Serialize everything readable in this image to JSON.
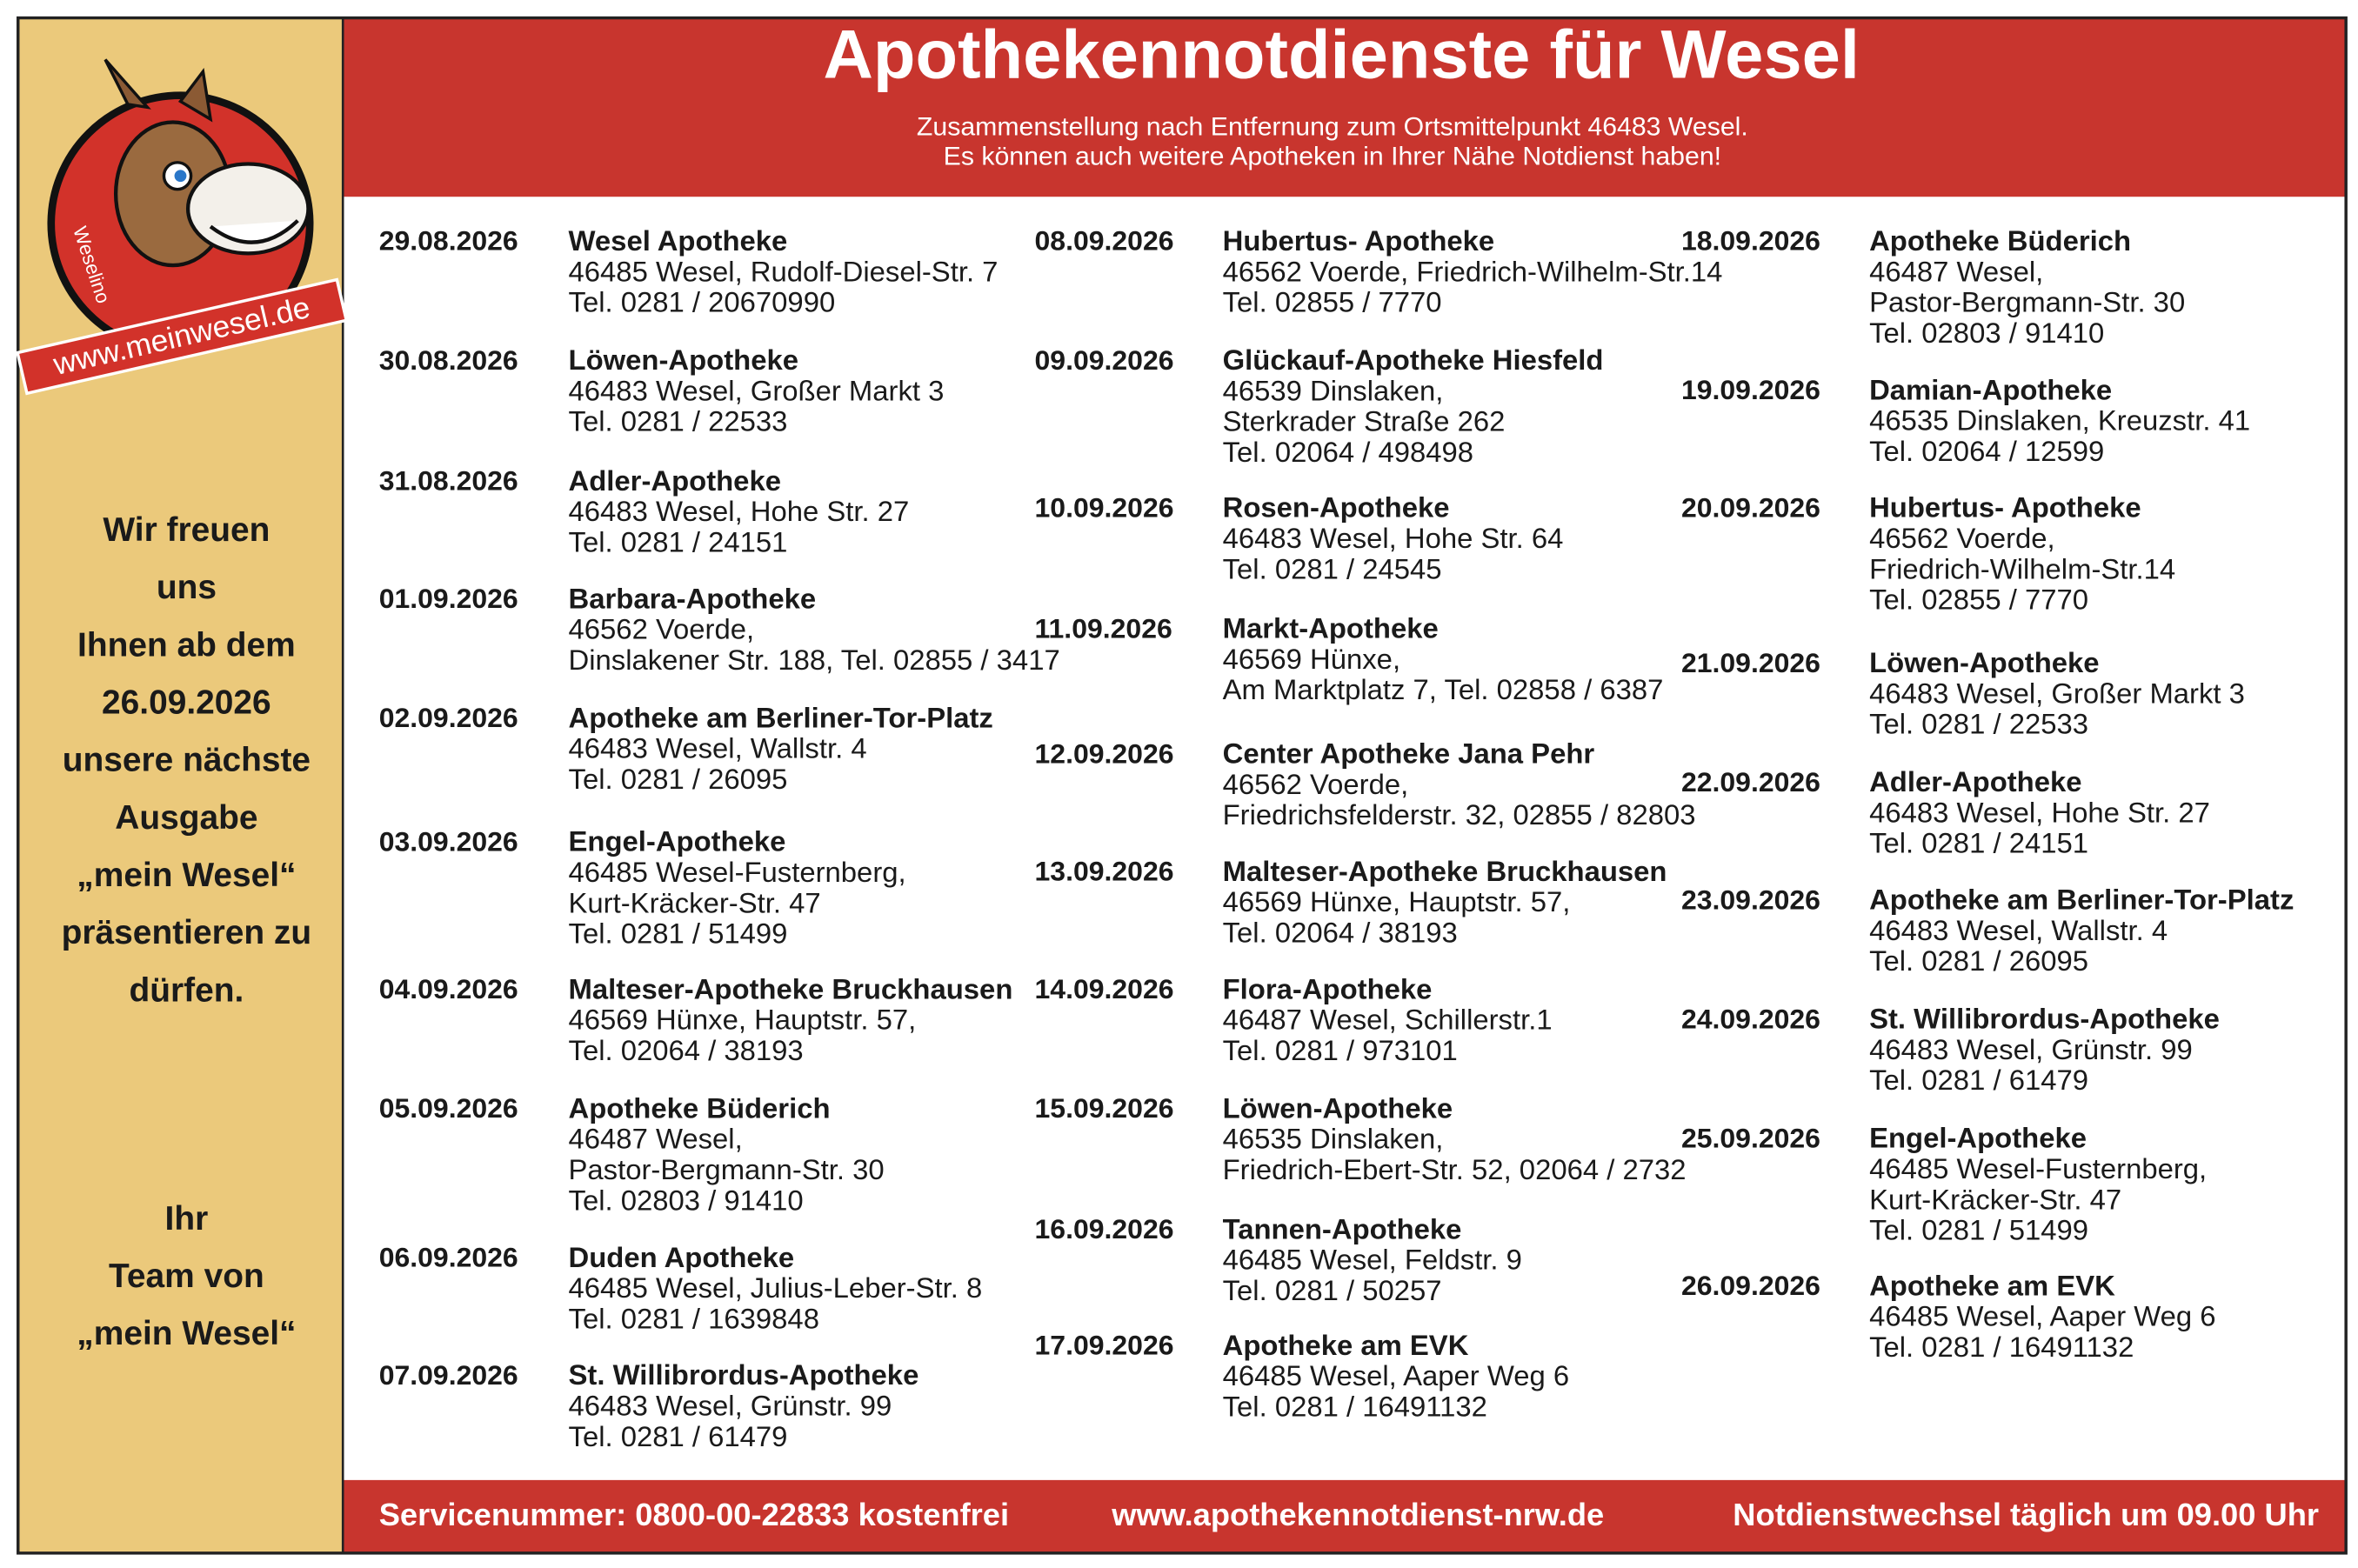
{
  "header": {
    "title": "Apothekennotdienste für Wesel",
    "subtitle": [
      "Zusammenstellung nach Entfernung zum Ortsmittelpunkt 46483 Wesel.",
      "Es können auch weitere Apotheken in Ihrer Nähe Notdienst haben!"
    ]
  },
  "sidebar": {
    "logo_name": "Weselino",
    "logo_url": "www.meinwesel.de",
    "message": [
      "Wir freuen",
      "uns",
      "Ihnen ab dem",
      "26.09.2026",
      "unsere nächste",
      "Ausgabe",
      "„mein Wesel“",
      "präsentieren zu",
      "dürfen."
    ],
    "signature": [
      "Ihr",
      "Team von",
      "„mein Wesel“"
    ]
  },
  "columns": [
    [
      {
        "date": "29.08.2026",
        "name": "Wesel Apotheke",
        "lines": [
          "46485 Wesel, Rudolf-Diesel-Str. 7",
          "Tel. 0281 / 20670990"
        ]
      },
      {
        "date": "30.08.2026",
        "name": "Löwen-Apotheke",
        "lines": [
          "46483 Wesel, Großer Markt 3",
          "Tel. 0281 / 22533"
        ]
      },
      {
        "date": "31.08.2026",
        "name": "Adler-Apotheke",
        "lines": [
          "46483 Wesel, Hohe Str. 27",
          "Tel. 0281 / 24151"
        ]
      },
      {
        "date": "01.09.2026",
        "name": "Barbara-Apotheke",
        "lines": [
          "46562 Voerde,",
          "Dinslakener Str. 188, Tel. 02855 / 3417"
        ]
      },
      {
        "date": "02.09.2026",
        "name": "Apotheke am Berliner-Tor-Platz",
        "lines": [
          "46483 Wesel, Wallstr. 4",
          "Tel. 0281 / 26095"
        ]
      },
      {
        "date": "03.09.2026",
        "name": "Engel-Apotheke",
        "lines": [
          "46485 Wesel-Fusternberg,",
          "Kurt-Kräcker-Str. 47",
          "Tel. 0281 / 51499"
        ]
      },
      {
        "date": "04.09.2026",
        "name": "Malteser-Apotheke Bruckhausen",
        "lines": [
          "46569 Hünxe, Hauptstr. 57,",
          "Tel. 02064 / 38193"
        ]
      },
      {
        "date": "05.09.2026",
        "name": "Apotheke Büderich",
        "lines": [
          "46487 Wesel,",
          "Pastor-Bergmann-Str. 30",
          "Tel. 02803 / 91410"
        ]
      },
      {
        "date": "06.09.2026",
        "name": "Duden Apotheke",
        "lines": [
          "46485 Wesel, Julius-Leber-Str. 8",
          "Tel. 0281 / 1639848"
        ]
      },
      {
        "date": "07.09.2026",
        "name": "St. Willibrordus-Apotheke",
        "lines": [
          "46483 Wesel, Grünstr. 99",
          "Tel. 0281 / 61479"
        ]
      }
    ],
    [
      {
        "date": "08.09.2026",
        "name": "Hubertus- Apotheke",
        "lines": [
          "46562 Voerde, Friedrich-Wilhelm-Str.14",
          "Tel. 02855 / 7770"
        ]
      },
      {
        "date": "09.09.2026",
        "name": "Glückauf-Apotheke Hiesfeld",
        "lines": [
          "46539 Dinslaken,",
          "Sterkrader Straße 262",
          "Tel. 02064 / 498498"
        ]
      },
      {
        "date": "10.09.2026",
        "name": "Rosen-Apotheke",
        "lines": [
          "46483 Wesel, Hohe Str. 64",
          "Tel. 0281 / 24545"
        ]
      },
      {
        "date": "11.09.2026",
        "name": "Markt-Apotheke",
        "lines": [
          "46569 Hünxe,",
          "Am Marktplatz 7, Tel. 02858 / 6387"
        ]
      },
      {
        "date": "12.09.2026",
        "name": "Center Apotheke Jana Pehr",
        "lines": [
          "46562 Voerde,",
          "Friedrichsfelderstr. 32, 02855 / 82803"
        ]
      },
      {
        "date": "13.09.2026",
        "name": "Malteser-Apotheke Bruckhausen",
        "lines": [
          "46569 Hünxe, Hauptstr. 57,",
          "Tel. 02064 / 38193"
        ]
      },
      {
        "date": "14.09.2026",
        "name": "Flora-Apotheke",
        "lines": [
          "46487 Wesel, Schillerstr.1",
          "Tel. 0281 / 973101"
        ]
      },
      {
        "date": "15.09.2026",
        "name": "Löwen-Apotheke",
        "lines": [
          "46535 Dinslaken,",
          "Friedrich-Ebert-Str. 52, 02064 / 2732"
        ]
      },
      {
        "date": "16.09.2026",
        "name": "Tannen-Apotheke",
        "lines": [
          "46485 Wesel, Feldstr. 9",
          "Tel. 0281 / 50257"
        ]
      },
      {
        "date": "17.09.2026",
        "name": "Apotheke am EVK",
        "lines": [
          "46485 Wesel, Aaper Weg 6",
          "Tel. 0281 / 16491132"
        ]
      }
    ],
    [
      {
        "date": "18.09.2026",
        "name": "Apotheke Büderich",
        "lines": [
          "46487 Wesel,",
          "Pastor-Bergmann-Str. 30",
          "Tel. 02803 / 91410"
        ]
      },
      {
        "date": "19.09.2026",
        "name": "Damian-Apotheke",
        "lines": [
          "46535 Dinslaken, Kreuzstr. 41",
          "Tel. 02064 / 12599"
        ]
      },
      {
        "date": "20.09.2026",
        "name": "Hubertus- Apotheke",
        "lines": [
          "46562 Voerde,",
          "Friedrich-Wilhelm-Str.14",
          "Tel. 02855 / 7770"
        ]
      },
      {
        "date": "21.09.2026",
        "name": "Löwen-Apotheke",
        "lines": [
          "46483 Wesel, Großer Markt 3",
          "Tel. 0281 / 22533"
        ]
      },
      {
        "date": "22.09.2026",
        "name": "Adler-Apotheke",
        "lines": [
          "46483 Wesel, Hohe Str. 27",
          "Tel. 0281 / 24151"
        ]
      },
      {
        "date": "23.09.2026",
        "name": "Apotheke am Berliner-Tor-Platz",
        "lines": [
          "46483 Wesel, Wallstr. 4",
          "Tel. 0281 / 26095"
        ]
      },
      {
        "date": "24.09.2026",
        "name": "St. Willibrordus-Apotheke",
        "lines": [
          "46483 Wesel, Grünstr. 99",
          "Tel. 0281 / 61479"
        ]
      },
      {
        "date": "25.09.2026",
        "name": "Engel-Apotheke",
        "lines": [
          "46485 Wesel-Fusternberg,",
          "Kurt-Kräcker-Str. 47",
          "Tel. 0281 / 51499"
        ]
      },
      {
        "date": "26.09.2026",
        "name": "Apotheke am EVK",
        "lines": [
          "46485 Wesel, Aaper Weg 6",
          "Tel. 0281 / 16491132"
        ]
      }
    ]
  ],
  "footer": {
    "service": "Servicenummer: 0800-00-22833 kostenfrei",
    "website": "www.apothekennotdienst-nrw.de",
    "change": "Notdienstwechsel täglich um 09.00 Uhr"
  }
}
